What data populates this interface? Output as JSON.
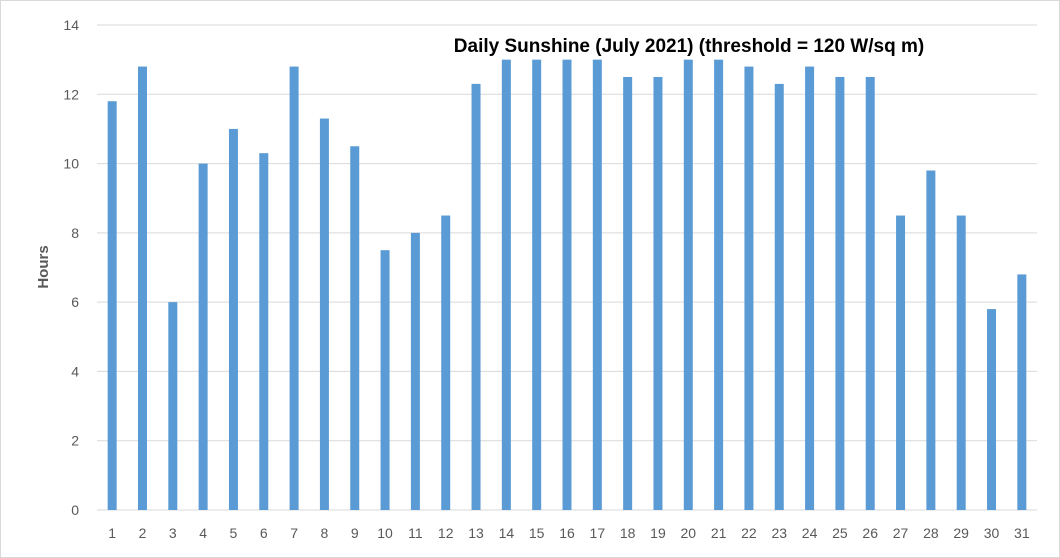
{
  "chart_data": {
    "type": "bar",
    "title": "Daily Sunshine (July 2021) (threshold = 120 W/sq m)",
    "xlabel": "",
    "ylabel": "Hours",
    "ylim": [
      0,
      14
    ],
    "yticks": [
      0,
      2,
      4,
      6,
      8,
      10,
      12,
      14
    ],
    "grid": true,
    "legend": "none",
    "bar_color": "#5b9bd5",
    "grid_color": "#d9d9d9",
    "categories": [
      "1",
      "2",
      "3",
      "4",
      "5",
      "6",
      "7",
      "8",
      "9",
      "10",
      "11",
      "12",
      "13",
      "14",
      "15",
      "16",
      "17",
      "18",
      "19",
      "20",
      "21",
      "22",
      "23",
      "24",
      "25",
      "26",
      "27",
      "28",
      "29",
      "30",
      "31"
    ],
    "values": [
      11.8,
      12.8,
      6.0,
      10.0,
      11.0,
      10.3,
      12.8,
      11.3,
      10.5,
      7.5,
      8.0,
      8.5,
      12.3,
      13.0,
      13.0,
      13.0,
      13.0,
      12.5,
      12.5,
      13.0,
      13.0,
      12.8,
      12.3,
      12.8,
      12.5,
      12.5,
      8.5,
      9.8,
      8.5,
      5.8,
      6.8
    ]
  }
}
